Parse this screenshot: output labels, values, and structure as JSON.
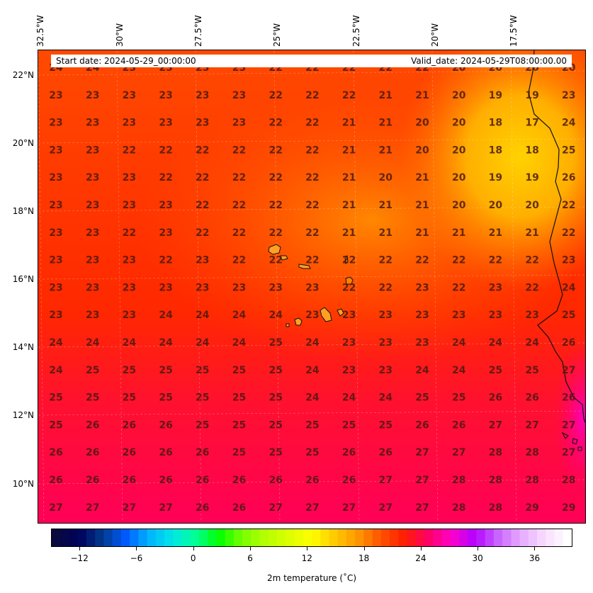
{
  "header": {
    "start_date": "Start date: 2024-05-29_00:00:00",
    "valid_date": "Valid_date: 2024-05-29T08:00:00.00"
  },
  "longitude_labels": [
    "32.5°W",
    "30°W",
    "27.5°W",
    "25°W",
    "22.5°W",
    "20°W",
    "17.5°W"
  ],
  "latitude_labels": [
    "22°N",
    "20°N",
    "18°N",
    "16°N",
    "14°N",
    "12°N",
    "10°N"
  ],
  "colorbar": {
    "ticks": [
      "−12",
      "−6",
      "0",
      "6",
      "12",
      "18",
      "24",
      "30",
      "36"
    ],
    "tick_values": [
      -12,
      -6,
      0,
      6,
      12,
      18,
      24,
      30,
      36
    ],
    "range": [
      -15,
      40
    ],
    "label": "2m temperature (˚C)",
    "colors": [
      "#0a0a40",
      "#00005a",
      "#003a8c",
      "#005aff",
      "#00b4ff",
      "#00e6e6",
      "#00ff96",
      "#00ff00",
      "#78ff00",
      "#b4ff00",
      "#dcff00",
      "#ffff00",
      "#ffc800",
      "#ff9600",
      "#ff5000",
      "#ff1e00",
      "#ff0064",
      "#ff00c8",
      "#b400ff",
      "#c864ff",
      "#e6aaff",
      "#f8dcff",
      "#ffffff"
    ]
  },
  "grid_values": [
    [
      24,
      24,
      23,
      23,
      23,
      23,
      22,
      22,
      22,
      22,
      22,
      20,
      20,
      20,
      20
    ],
    [
      23,
      23,
      23,
      23,
      23,
      23,
      22,
      22,
      22,
      21,
      21,
      20,
      19,
      19,
      23
    ],
    [
      23,
      23,
      23,
      23,
      23,
      23,
      22,
      22,
      21,
      21,
      20,
      20,
      18,
      17,
      24
    ],
    [
      23,
      23,
      22,
      22,
      22,
      22,
      22,
      22,
      21,
      21,
      20,
      20,
      18,
      18,
      25
    ],
    [
      23,
      23,
      23,
      22,
      22,
      22,
      22,
      22,
      21,
      20,
      21,
      20,
      19,
      19,
      26
    ],
    [
      23,
      23,
      23,
      23,
      22,
      22,
      22,
      22,
      21,
      21,
      21,
      20,
      20,
      20,
      22
    ],
    [
      23,
      23,
      22,
      23,
      22,
      22,
      22,
      22,
      21,
      21,
      21,
      21,
      21,
      21,
      22
    ],
    [
      23,
      23,
      23,
      22,
      23,
      22,
      22,
      22,
      22,
      22,
      22,
      22,
      22,
      22,
      23
    ],
    [
      23,
      23,
      23,
      23,
      23,
      23,
      23,
      23,
      22,
      22,
      23,
      22,
      23,
      22,
      24
    ],
    [
      23,
      23,
      23,
      24,
      24,
      24,
      24,
      23,
      23,
      23,
      23,
      23,
      23,
      23,
      25
    ],
    [
      24,
      24,
      24,
      24,
      24,
      24,
      25,
      24,
      23,
      23,
      23,
      24,
      24,
      24,
      26
    ],
    [
      24,
      25,
      25,
      25,
      25,
      25,
      25,
      24,
      23,
      23,
      24,
      24,
      25,
      25,
      27
    ],
    [
      25,
      25,
      25,
      25,
      25,
      25,
      25,
      24,
      24,
      24,
      25,
      25,
      26,
      26,
      26
    ],
    [
      25,
      26,
      26,
      26,
      25,
      25,
      25,
      25,
      25,
      25,
      26,
      26,
      27,
      27,
      27
    ],
    [
      26,
      26,
      26,
      26,
      26,
      25,
      25,
      25,
      26,
      26,
      27,
      27,
      28,
      28,
      27
    ],
    [
      26,
      26,
      26,
      26,
      26,
      26,
      26,
      26,
      26,
      27,
      27,
      28,
      28,
      28,
      28
    ],
    [
      27,
      27,
      27,
      27,
      26,
      26,
      27,
      27,
      27,
      27,
      27,
      28,
      28,
      29,
      29
    ]
  ]
}
